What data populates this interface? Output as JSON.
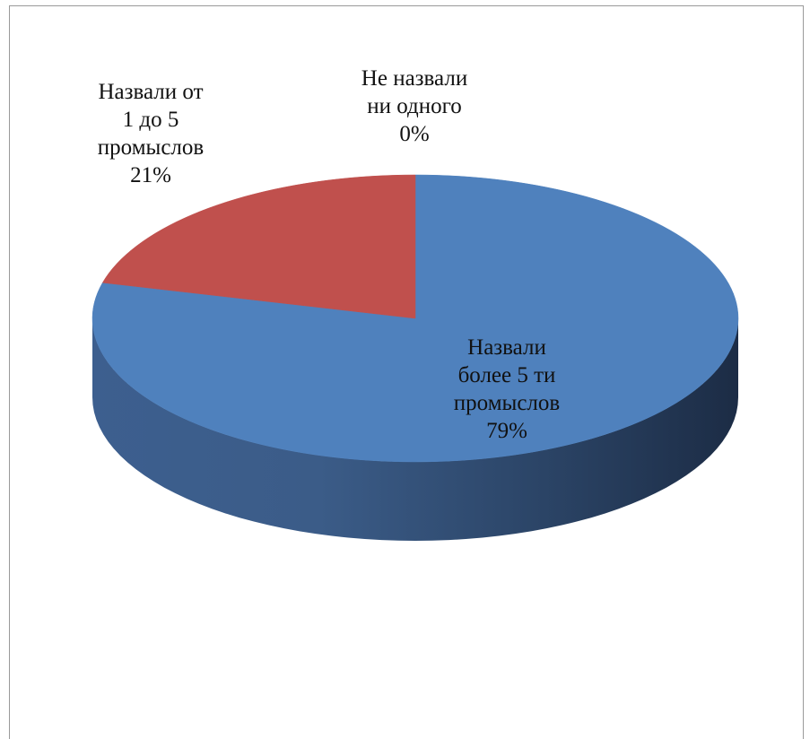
{
  "chart_data": {
    "type": "pie",
    "style": "3d",
    "categories": [
      "Назвали более 5 ти промыслов",
      "Назвали от 1 до 5 промыслов",
      "Не назвали ни одного"
    ],
    "values": [
      79,
      21,
      0
    ],
    "units": "%",
    "colors": [
      "#4f81bd",
      "#c0504d",
      "#9bbb59"
    ],
    "labels": [
      {
        "lines": [
          "Назвали",
          "более 5 ти",
          "промыслов"
        ],
        "percent": "79%"
      },
      {
        "lines": [
          "Назвали от",
          "1 до 5",
          "промыслов"
        ],
        "percent": "21%"
      },
      {
        "lines": [
          "Не назвали",
          "ни одного"
        ],
        "percent": "0%"
      }
    ],
    "legend": "none",
    "title": ""
  }
}
